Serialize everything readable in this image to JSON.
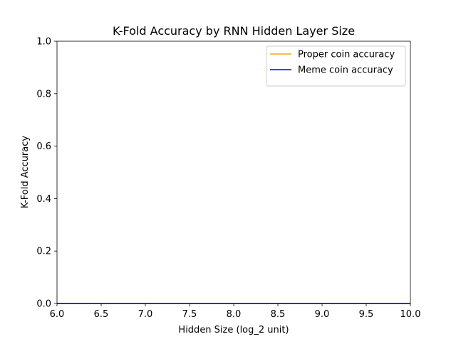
{
  "chart_data": {
    "type": "line",
    "title": "K-Fold Accuracy by RNN Hidden Layer Size",
    "xlabel": "Hidden Size (log_2 unit)",
    "ylabel": "K-Fold Accuracy",
    "xlim": [
      6.0,
      10.0
    ],
    "ylim": [
      0.0,
      1.0
    ],
    "x_ticks": [
      "6.0",
      "6.5",
      "7.0",
      "7.5",
      "8.0",
      "8.5",
      "9.0",
      "9.5",
      "10.0"
    ],
    "y_ticks": [
      "0.0",
      "0.2",
      "0.4",
      "0.6",
      "0.8",
      "1.0"
    ],
    "grid": false,
    "legend_position": "top-right",
    "series": [
      {
        "name": "Proper coin accuracy",
        "color": "#ffa500",
        "x": [
          6,
          7,
          8,
          9,
          10
        ],
        "y": [
          0,
          0,
          0,
          0,
          0
        ]
      },
      {
        "name": "Meme coin accuracy",
        "color": "#0000ff",
        "x": [
          6,
          7,
          8,
          9,
          10
        ],
        "y": [
          0,
          0,
          0,
          0,
          0
        ]
      }
    ]
  }
}
